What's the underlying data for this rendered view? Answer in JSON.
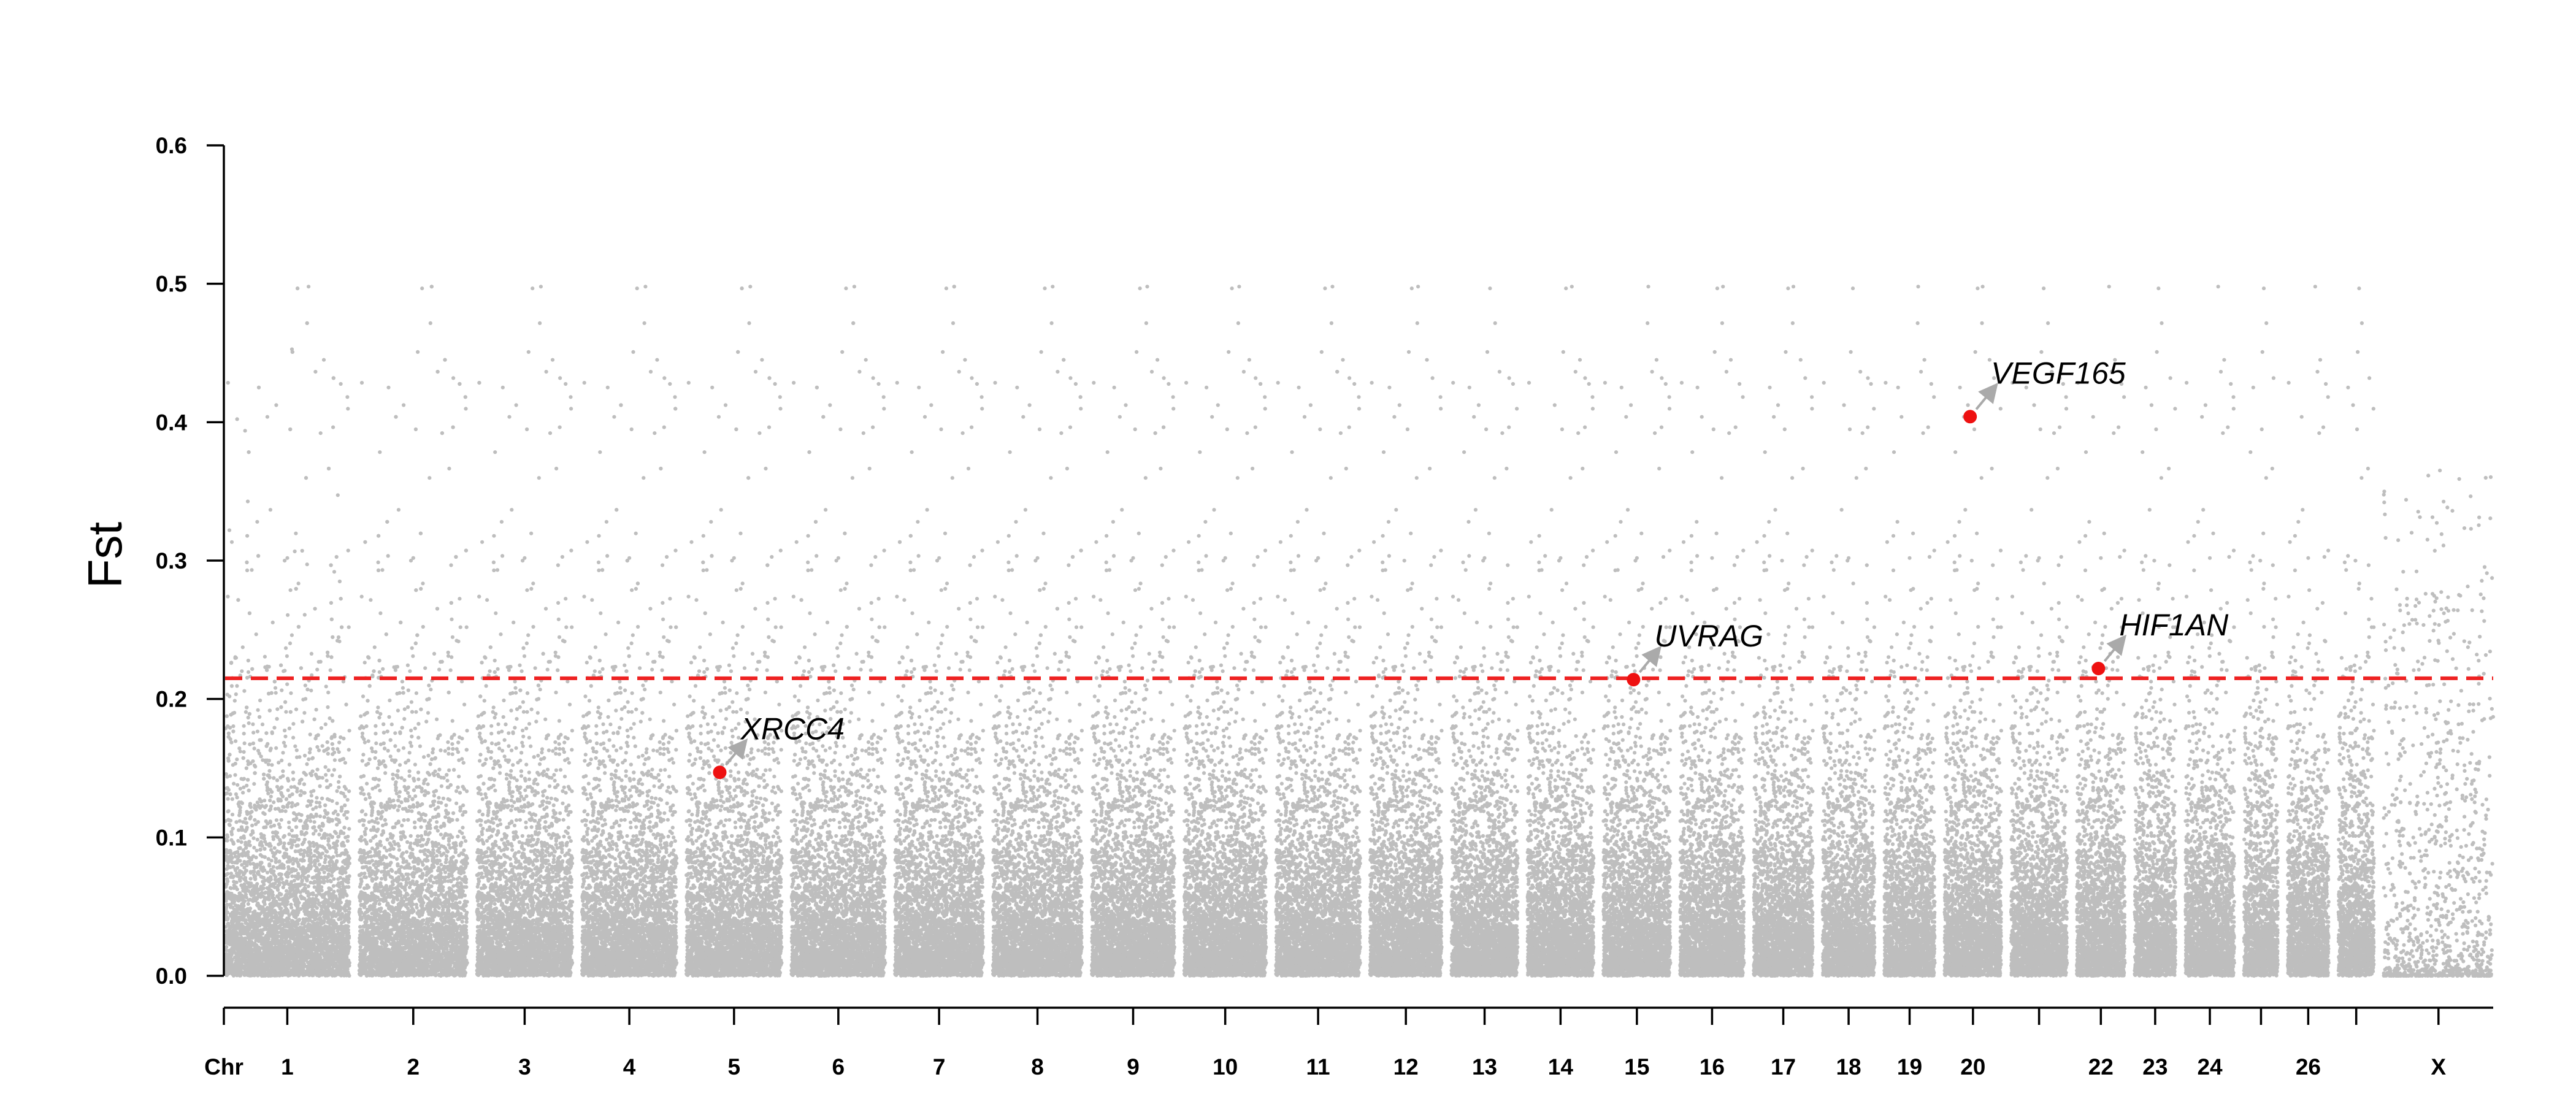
{
  "chart_data": {
    "type": "scatter",
    "title": "",
    "xlabel": "",
    "ylabel": "Fst",
    "ylim": [
      0,
      0.6
    ],
    "y_ticks": [
      "0.0",
      "0.1",
      "0.2",
      "0.3",
      "0.4",
      "0.5",
      "0.6"
    ],
    "x_axis_prefix": "Chr",
    "threshold": 0.215,
    "point_color": "#bebebe",
    "highlight_color": "#ee1111",
    "threshold_color": "#ee2222",
    "arrow_color": "#aaaaaa",
    "chromosomes": [
      {
        "name": "1",
        "length": 158,
        "label": "1"
      },
      {
        "name": "2",
        "length": 137,
        "label": "2"
      },
      {
        "name": "3",
        "length": 121,
        "label": "3"
      },
      {
        "name": "4",
        "length": 120,
        "label": "4"
      },
      {
        "name": "5",
        "length": 121,
        "label": "5"
      },
      {
        "name": "6",
        "length": 119,
        "label": "6"
      },
      {
        "name": "7",
        "length": 112,
        "label": "7"
      },
      {
        "name": "8",
        "length": 113,
        "label": "8"
      },
      {
        "name": "9",
        "length": 105,
        "label": "9"
      },
      {
        "name": "10",
        "length": 104,
        "label": "10"
      },
      {
        "name": "11",
        "length": 107,
        "label": "11"
      },
      {
        "name": "12",
        "length": 91,
        "label": "12"
      },
      {
        "name": "13",
        "length": 84,
        "label": "13"
      },
      {
        "name": "14",
        "length": 84,
        "label": "14"
      },
      {
        "name": "15",
        "length": 85,
        "label": "15"
      },
      {
        "name": "16",
        "length": 81,
        "label": "16"
      },
      {
        "name": "17",
        "length": 75,
        "label": "17"
      },
      {
        "name": "18",
        "length": 66,
        "label": "18"
      },
      {
        "name": "19",
        "length": 64,
        "label": "19"
      },
      {
        "name": "20",
        "length": 72,
        "label": "20"
      },
      {
        "name": "21",
        "length": 71,
        "label": ""
      },
      {
        "name": "22",
        "length": 61,
        "label": "22"
      },
      {
        "name": "23",
        "length": 52,
        "label": "23"
      },
      {
        "name": "24",
        "length": 62,
        "label": "24"
      },
      {
        "name": "25",
        "length": 43,
        "label": ""
      },
      {
        "name": "26",
        "length": 52,
        "label": "26"
      },
      {
        "name": "27",
        "length": 45,
        "label": ""
      },
      {
        "name": "X",
        "length": 139,
        "label": "X"
      }
    ],
    "highlights": [
      {
        "gene": "XRCC4",
        "chr": "5",
        "fst": 0.147
      },
      {
        "gene": "UVRAG",
        "chr": "15",
        "fst": 0.214
      },
      {
        "gene": "VEGF165",
        "chr": "20",
        "fst": 0.404
      },
      {
        "gene": "HIF1AN",
        "chr": "22",
        "fst": 0.222
      }
    ]
  }
}
